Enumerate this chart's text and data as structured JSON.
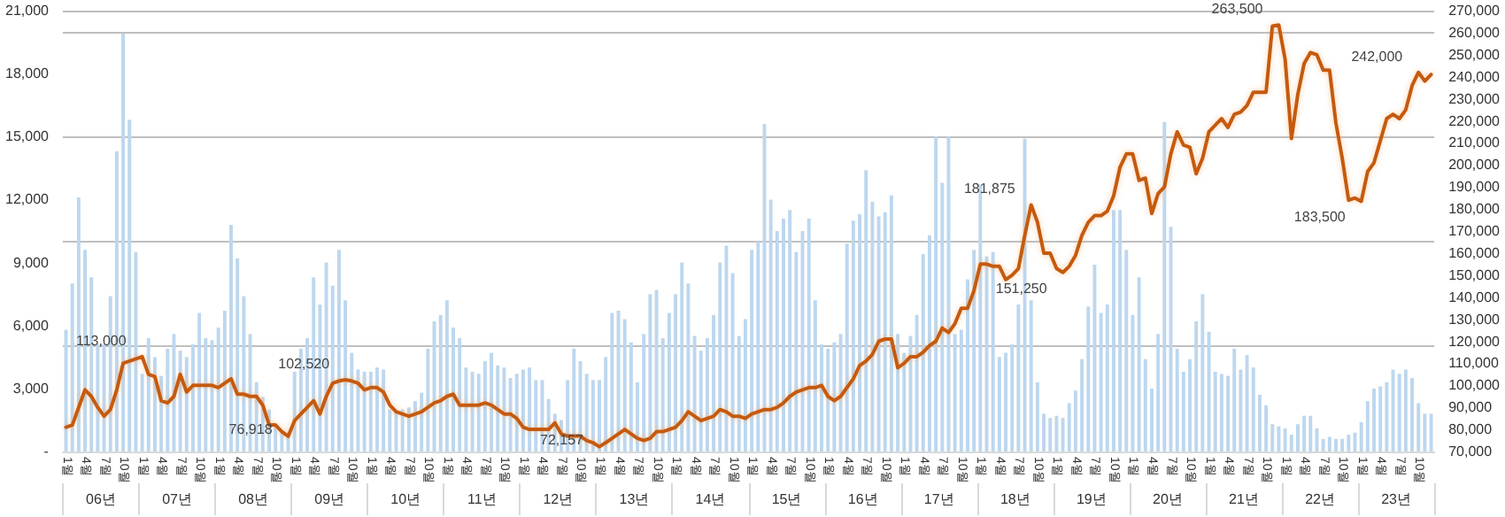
{
  "chart_data": {
    "type": "bar",
    "categories": [
      "1월",
      null,
      null,
      "4월",
      null,
      null,
      "7월",
      null,
      null,
      "10월",
      null,
      null,
      "1월",
      null,
      null,
      "4월",
      null,
      null,
      "7월",
      null,
      null,
      "10월",
      null,
      null,
      "1월",
      null,
      null,
      "4월",
      null,
      null,
      "7월",
      null,
      null,
      "10월",
      null,
      null,
      "1월",
      null,
      null,
      "4월",
      null,
      null,
      "7월",
      null,
      null,
      "10월",
      null,
      null,
      "1월",
      null,
      null,
      "4월",
      null,
      null,
      "7월",
      null,
      null,
      "10월",
      null,
      null,
      "1월",
      null,
      null,
      "4월",
      null,
      null,
      "7월",
      null,
      null,
      "10월",
      null,
      null,
      "1월",
      null,
      null,
      "4월",
      null,
      null,
      "7월",
      null,
      null,
      "10월",
      null,
      null,
      "1월",
      null,
      null,
      "4월",
      null,
      null,
      "7월",
      null,
      null,
      "10월",
      null,
      null,
      "1월",
      null,
      null,
      "4월",
      null,
      null,
      "7월",
      null,
      null,
      "10월",
      null,
      null,
      "1월",
      null,
      null,
      "4월",
      null,
      null,
      "7월",
      null,
      null,
      "10월",
      null,
      null,
      "1월",
      null,
      null,
      "4월",
      null,
      null,
      "7월",
      null,
      null,
      "10월",
      null,
      null,
      "1월",
      null,
      null,
      "4월",
      null,
      null,
      "7월",
      null,
      null,
      "10월",
      null,
      null,
      "1월",
      null,
      null,
      "4월",
      null,
      null,
      "7월",
      null,
      null,
      "10월",
      null,
      null,
      "1월",
      null,
      null,
      "4월",
      null,
      null,
      "7월",
      null,
      null,
      "10월",
      null,
      null,
      "1월",
      null,
      null,
      "4월",
      null,
      null,
      "7월",
      null,
      null,
      "10월",
      null,
      null,
      "1월",
      null,
      null,
      "4월",
      null,
      null,
      "7월",
      null,
      null,
      "10월",
      null,
      null,
      "1월",
      null,
      null,
      "4월",
      null,
      null,
      "7월",
      null,
      null,
      "10월",
      null,
      null,
      "1월",
      null,
      null,
      "4월",
      null,
      null,
      "7월",
      null,
      null,
      "10월",
      null,
      null
    ],
    "annotations": [
      "06년",
      "07년",
      "08년",
      "09년",
      "10년",
      "11년",
      "12년",
      "13년",
      "14년",
      "15년",
      "16년",
      "17년",
      "18년",
      "19년",
      "20년",
      "21년",
      "22년",
      "23년"
    ],
    "series": [
      {
        "color": "#bdd7ee",
        "values": [
          5800,
          8000,
          12100,
          9600,
          8300,
          5100,
          5100,
          7400,
          14300,
          19900,
          15800,
          9500,
          3700,
          5400,
          4500,
          3600,
          4900,
          5600,
          4800,
          4500,
          5100,
          6600,
          5400,
          5300,
          5900,
          6700,
          10800,
          9200,
          7400,
          5600,
          3300,
          2600,
          2000,
          1200,
          1000,
          900,
          3800,
          4900,
          5400,
          8300,
          7000,
          9000,
          7900,
          9600,
          7200,
          4700,
          3900,
          3800,
          3800,
          4000,
          3900,
          2000,
          1900,
          2000,
          2100,
          2400,
          2800,
          4900,
          6200,
          6500,
          7200,
          5900,
          5400,
          4000,
          3800,
          3700,
          4300,
          4700,
          4100,
          4000,
          3500,
          3700,
          3900,
          4000,
          3400,
          3400,
          2500,
          1800,
          1500,
          3400,
          4900,
          4300,
          3700,
          3400,
          3400,
          4500,
          6600,
          6700,
          6300,
          5200,
          3300,
          5600,
          7500,
          7700,
          5400,
          6600,
          7500,
          9000,
          8000,
          5500,
          4800,
          5400,
          6500,
          9000,
          9800,
          8500,
          5500,
          6300,
          9600,
          10000,
          15600,
          12000,
          10500,
          11100,
          11500,
          9500,
          10500,
          11100,
          7200,
          5100,
          4900,
          5200,
          5600,
          9900,
          11000,
          11300,
          13400,
          11900,
          11200,
          11400,
          12200,
          5600,
          4700,
          5500,
          6500,
          9400,
          10300,
          15000,
          12800,
          15000,
          5600,
          5800,
          8200,
          9600,
          12700,
          9300,
          9500,
          4500,
          4700,
          5100,
          7000,
          14900,
          7200,
          3300,
          1800,
          1600,
          1700,
          1600,
          2300,
          2900,
          4400,
          6900,
          8900,
          6600,
          7000,
          11500,
          11500,
          9600,
          6500,
          8300,
          4400,
          3000,
          5600,
          15700,
          10700,
          4900,
          3800,
          4400,
          6200,
          7500,
          5700,
          3800,
          3700,
          3600,
          4900,
          3900,
          4600,
          4000,
          2700,
          2200,
          1300,
          1200,
          1100,
          800,
          1300,
          1700,
          1700,
          1100,
          600,
          700,
          600,
          600,
          800,
          900,
          1400,
          2400,
          3000,
          3100,
          3300,
          3900,
          3700,
          3900,
          3500,
          2300,
          1800,
          1800
        ]
      },
      {
        "type": "line",
        "axis": "y2",
        "color": "#c55a11",
        "values": [
          81000,
          82000,
          90000,
          98000,
          95000,
          90000,
          86000,
          89000,
          98000,
          110000,
          111000,
          112000,
          113000,
          105000,
          104000,
          93000,
          92000,
          95000,
          105000,
          97000,
          100000,
          100000,
          100000,
          100000,
          99000,
          101000,
          103000,
          96000,
          96000,
          95000,
          95000,
          91000,
          82000,
          82000,
          79000,
          76918,
          84000,
          87000,
          90000,
          93000,
          87000,
          95000,
          101000,
          102000,
          102520,
          102000,
          101000,
          98000,
          99000,
          99000,
          97000,
          91000,
          88000,
          87000,
          86000,
          87000,
          88000,
          90000,
          92000,
          93000,
          95000,
          96000,
          91000,
          91000,
          91000,
          91000,
          92000,
          91000,
          89000,
          87000,
          87000,
          85000,
          81000,
          80000,
          80000,
          80000,
          80000,
          83000,
          78000,
          77000,
          77000,
          77000,
          75000,
          74000,
          72157,
          74000,
          76000,
          78000,
          80000,
          78000,
          76000,
          75000,
          76000,
          79000,
          79000,
          80000,
          81000,
          84000,
          88000,
          86000,
          84000,
          85000,
          86000,
          89000,
          88000,
          86000,
          86000,
          85000,
          87000,
          88000,
          89000,
          89000,
          90000,
          92000,
          95000,
          97000,
          98000,
          99000,
          99000,
          100000,
          95000,
          93000,
          95000,
          99000,
          103000,
          109000,
          111000,
          114000,
          120000,
          121000,
          121000,
          108000,
          110000,
          113000,
          113000,
          115000,
          118000,
          120000,
          126000,
          124000,
          128000,
          135000,
          135000,
          143000,
          155000,
          155000,
          154000,
          154000,
          148000,
          150000,
          153000,
          168000,
          181875,
          174000,
          160000,
          160000,
          153000,
          151250,
          154000,
          159000,
          168000,
          174000,
          177000,
          177000,
          179000,
          186000,
          199000,
          205000,
          205000,
          193000,
          194000,
          178000,
          187000,
          190000,
          205000,
          215000,
          209000,
          208000,
          196000,
          203000,
          215000,
          218000,
          221000,
          217000,
          223000,
          224000,
          227000,
          233000,
          233000,
          233000,
          263000,
          263500,
          248000,
          212000,
          232000,
          246000,
          251000,
          250000,
          243000,
          243000,
          219000,
          203000,
          184000,
          185000,
          183500,
          197000,
          201000,
          211000,
          221000,
          223000,
          221000,
          225000,
          236000,
          242000,
          238000,
          241000
        ],
        "value_labels": [
          null,
          null,
          null,
          null,
          null,
          null,
          null,
          null,
          null,
          null,
          null,
          null,
          "113,000",
          null,
          null,
          null,
          null,
          null,
          null,
          null,
          null,
          null,
          null,
          null,
          null,
          null,
          null,
          null,
          null,
          null,
          null,
          null,
          null,
          null,
          null,
          "76,918",
          null,
          null,
          null,
          null,
          null,
          null,
          null,
          null,
          "102,520",
          null,
          null,
          null,
          null,
          null,
          null,
          null,
          null,
          null,
          null,
          null,
          null,
          null,
          null,
          null,
          null,
          null,
          null,
          null,
          null,
          null,
          null,
          null,
          null,
          null,
          null,
          null,
          null,
          null,
          null,
          null,
          null,
          null,
          null,
          null,
          null,
          null,
          null,
          null,
          "72,157",
          null,
          null,
          null,
          null,
          null,
          null,
          null,
          null,
          null,
          null,
          null,
          null,
          null,
          null,
          null,
          null,
          null,
          null,
          null,
          null,
          null,
          null,
          null,
          null,
          null,
          null,
          null,
          null,
          null,
          null,
          null,
          null,
          null,
          null,
          null,
          null,
          null,
          null,
          null,
          null,
          null,
          null,
          null,
          null,
          null,
          null,
          null,
          null,
          null,
          null,
          null,
          null,
          null,
          null,
          null,
          null,
          null,
          null,
          null,
          null,
          null,
          null,
          null,
          null,
          null,
          null,
          null,
          "181,875",
          null,
          null,
          null,
          null,
          "151,250",
          null,
          null,
          null,
          null,
          null,
          null,
          null,
          null,
          null,
          null,
          null,
          null,
          null,
          null,
          null,
          null,
          null,
          null,
          null,
          null,
          null,
          null,
          null,
          null,
          null,
          null,
          null,
          null,
          null,
          null,
          null,
          null,
          null,
          "263,500",
          null,
          null,
          null,
          null,
          null,
          null,
          null,
          null,
          null,
          null,
          null,
          null,
          "183,500",
          null,
          null,
          null,
          null,
          null,
          null,
          null,
          null,
          "242,000",
          null,
          null
        ]
      }
    ],
    "ylim": [
      0,
      21000
    ],
    "yticks": [
      {
        "value": 0,
        "label": "-"
      },
      {
        "value": 3000,
        "label": "3,000"
      },
      {
        "value": 6000,
        "label": "6,000"
      },
      {
        "value": 9000,
        "label": "9,000"
      },
      {
        "value": 12000,
        "label": "12,000"
      },
      {
        "value": 15000,
        "label": "15,000"
      },
      {
        "value": 18000,
        "label": "18,000"
      },
      {
        "value": 21000,
        "label": "21,000"
      }
    ],
    "y2lim": [
      70000,
      270000
    ],
    "y2ticks": [
      {
        "value": 70000,
        "label": "70,000"
      },
      {
        "value": 80000,
        "label": "80,000"
      },
      {
        "value": 90000,
        "label": "90,000"
      },
      {
        "value": 100000,
        "label": "100,000"
      },
      {
        "value": 110000,
        "label": "110,000"
      },
      {
        "value": 120000,
        "label": "120,000"
      },
      {
        "value": 130000,
        "label": "130,000"
      },
      {
        "value": 140000,
        "label": "140,000"
      },
      {
        "value": 150000,
        "label": "150,000"
      },
      {
        "value": 160000,
        "label": "160,000"
      },
      {
        "value": 170000,
        "label": "170,000"
      },
      {
        "value": 180000,
        "label": "180,000"
      },
      {
        "value": 190000,
        "label": "190,000"
      },
      {
        "value": 200000,
        "label": "200,000"
      },
      {
        "value": 210000,
        "label": "210,000"
      },
      {
        "value": 220000,
        "label": "220,000"
      },
      {
        "value": 230000,
        "label": "230,000"
      },
      {
        "value": 240000,
        "label": "240,000"
      },
      {
        "value": 250000,
        "label": "250,000"
      },
      {
        "value": 260000,
        "label": "260,000"
      },
      {
        "value": 270000,
        "label": "270,000"
      }
    ],
    "grid": "y",
    "marker": "none"
  }
}
